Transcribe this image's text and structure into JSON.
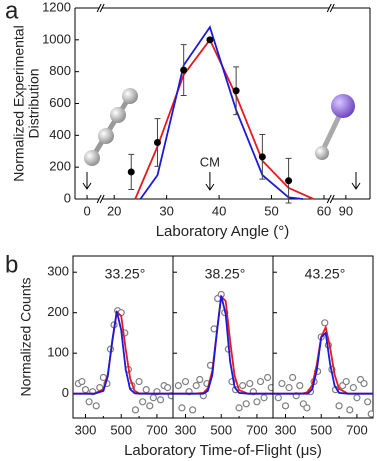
{
  "chart_data": [
    {
      "type": "line",
      "label": "a",
      "xlabel": "Laboratory Angle (°)",
      "ylabel": [
        "Normalized Experimental",
        "Distribution"
      ],
      "xlim": [
        -2.3,
        94.6
      ],
      "xbreaks": [
        [
          2.3,
          17.7
        ],
        [
          61,
          87.4
        ]
      ],
      "xticks": [
        0,
        20,
        30,
        40,
        50,
        60,
        90
      ],
      "ylim": [
        0,
        1200
      ],
      "yticks": [
        0,
        200,
        400,
        600,
        800,
        1000,
        1200
      ],
      "annotations": [
        {
          "text": "CM",
          "x": 38.25
        }
      ],
      "series": [
        {
          "mode": "lines",
          "color": "#e8191f",
          "x": [
            24,
            28.25,
            33.25,
            38.25,
            43.25,
            48.25,
            53.25,
            58
          ],
          "values": [
            0,
            330,
            780,
            1000,
            650,
            240,
            70,
            0
          ]
        },
        {
          "mode": "lines",
          "color": "#1a1adb",
          "x": [
            25,
            28.25,
            33.25,
            38.25,
            43.25,
            48.25,
            53.25,
            56
          ],
          "values": [
            0,
            150,
            840,
            1080,
            560,
            150,
            10,
            0
          ]
        },
        {
          "mode": "markers",
          "color": "#000000",
          "x": [
            23.25,
            28.25,
            33.25,
            38.25,
            43.25,
            48.25,
            53.25
          ],
          "values": [
            170,
            355,
            810,
            1000,
            680,
            265,
            115
          ],
          "errors": [
            110,
            150,
            160,
            10,
            150,
            140,
            140
          ]
        }
      ]
    },
    {
      "type": "panels",
      "label": "b",
      "xlabel": "Laboratory Time-of-Flight (μs)",
      "ylabel": "Normalized Counts",
      "xlim": [
        230,
        790
      ],
      "xticks": [
        300,
        500,
        700
      ],
      "xminorticks": [
        400,
        600
      ],
      "ylim": [
        -60,
        340
      ],
      "yticks": [
        0,
        100,
        200,
        300
      ],
      "panels": [
        {
          "title": "33.25°",
          "series": [
            {
              "mode": "markers",
              "color": "#808080",
              "x": [
                260,
                280,
                300,
                320,
                340,
                360,
                380,
                400,
                420,
                440,
                460,
                480,
                500,
                520,
                540,
                560,
                580,
                600,
                620,
                640,
                660,
                680,
                700,
                720,
                740,
                760,
                780
              ],
              "values": [
                25,
                30,
                10,
                -20,
                5,
                -30,
                15,
                40,
                25,
                110,
                170,
                205,
                200,
                150,
                60,
                20,
                -40,
                30,
                -20,
                10,
                -30,
                -10,
                5,
                -15,
                20,
                15,
                -5
              ]
            },
            {
              "mode": "lines",
              "color": "#e8191f",
              "x": [
                230,
                300,
                350,
                400,
                425,
                450,
                475,
                500,
                525,
                550,
                575,
                600,
                650,
                700,
                790
              ],
              "values": [
                0,
                0,
                0,
                11,
                48,
                128,
                202,
                192,
                110,
                38,
                7,
                1,
                0,
                0,
                0
              ]
            },
            {
              "mode": "lines",
              "color": "#1a1adb",
              "x": [
                230,
                300,
                350,
                400,
                425,
                450,
                475,
                500,
                525,
                550,
                575,
                600,
                650,
                700,
                790
              ],
              "values": [
                0,
                0,
                0,
                7,
                43,
                132,
                204,
                157,
                60,
                11,
                1,
                0,
                0,
                0,
                0
              ]
            }
          ]
        },
        {
          "title": "38.25°",
          "series": [
            {
              "mode": "markers",
              "color": "#808080",
              "x": [
                260,
                280,
                300,
                320,
                340,
                360,
                380,
                400,
                420,
                440,
                460,
                480,
                500,
                520,
                540,
                560,
                580,
                600,
                620,
                640,
                660,
                680,
                700,
                720,
                740,
                760,
                780
              ],
              "values": [
                20,
                -35,
                30,
                5,
                -40,
                20,
                35,
                -5,
                25,
                70,
                160,
                235,
                245,
                200,
                110,
                30,
                10,
                -35,
                20,
                -25,
                25,
                5,
                -20,
                30,
                -10,
                40,
                15
              ]
            },
            {
              "mode": "lines",
              "color": "#e8191f",
              "x": [
                230,
                300,
                350,
                400,
                425,
                450,
                475,
                500,
                525,
                550,
                575,
                600,
                650,
                700,
                790
              ],
              "values": [
                0,
                0,
                0,
                2,
                13,
                57,
                152,
                240,
                229,
                131,
                44,
                9,
                0,
                0,
                0
              ]
            },
            {
              "mode": "lines",
              "color": "#1a1adb",
              "x": [
                230,
                300,
                350,
                400,
                425,
                450,
                475,
                500,
                525,
                550,
                575,
                600,
                650,
                700,
                790
              ],
              "values": [
                0,
                0,
                0,
                0,
                7,
                46,
                149,
                242,
                196,
                80,
                16,
                2,
                0,
                0,
                0
              ]
            }
          ]
        },
        {
          "title": "43.25°",
          "series": [
            {
              "mode": "markers",
              "color": "#808080",
              "x": [
                260,
                280,
                300,
                320,
                340,
                360,
                380,
                400,
                420,
                440,
                460,
                480,
                500,
                520,
                540,
                560,
                580,
                600,
                620,
                640,
                660,
                680,
                700,
                720,
                740,
                760,
                780
              ],
              "values": [
                -10,
                25,
                -30,
                15,
                40,
                -5,
                20,
                -25,
                -35,
                5,
                30,
                55,
                140,
                175,
                120,
                60,
                10,
                -30,
                20,
                30,
                -40,
                15,
                -10,
                35,
                25,
                -20,
                -50
              ]
            },
            {
              "mode": "lines",
              "color": "#e8191f",
              "x": [
                230,
                300,
                350,
                400,
                425,
                450,
                475,
                500,
                525,
                550,
                575,
                600,
                650,
                700,
                790
              ],
              "values": [
                0,
                0,
                0,
                1,
                4,
                22,
                72,
                140,
                164,
                114,
                47,
                12,
                0,
                0,
                0
              ]
            },
            {
              "mode": "lines",
              "color": "#1a1adb",
              "x": [
                230,
                300,
                350,
                400,
                425,
                450,
                475,
                500,
                525,
                550,
                575,
                600,
                650,
                700,
                790
              ],
              "values": [
                0,
                0,
                0,
                0,
                0,
                11,
                58,
                139,
                150,
                73,
                20,
                2,
                0,
                0,
                0
              ]
            }
          ]
        }
      ]
    }
  ]
}
